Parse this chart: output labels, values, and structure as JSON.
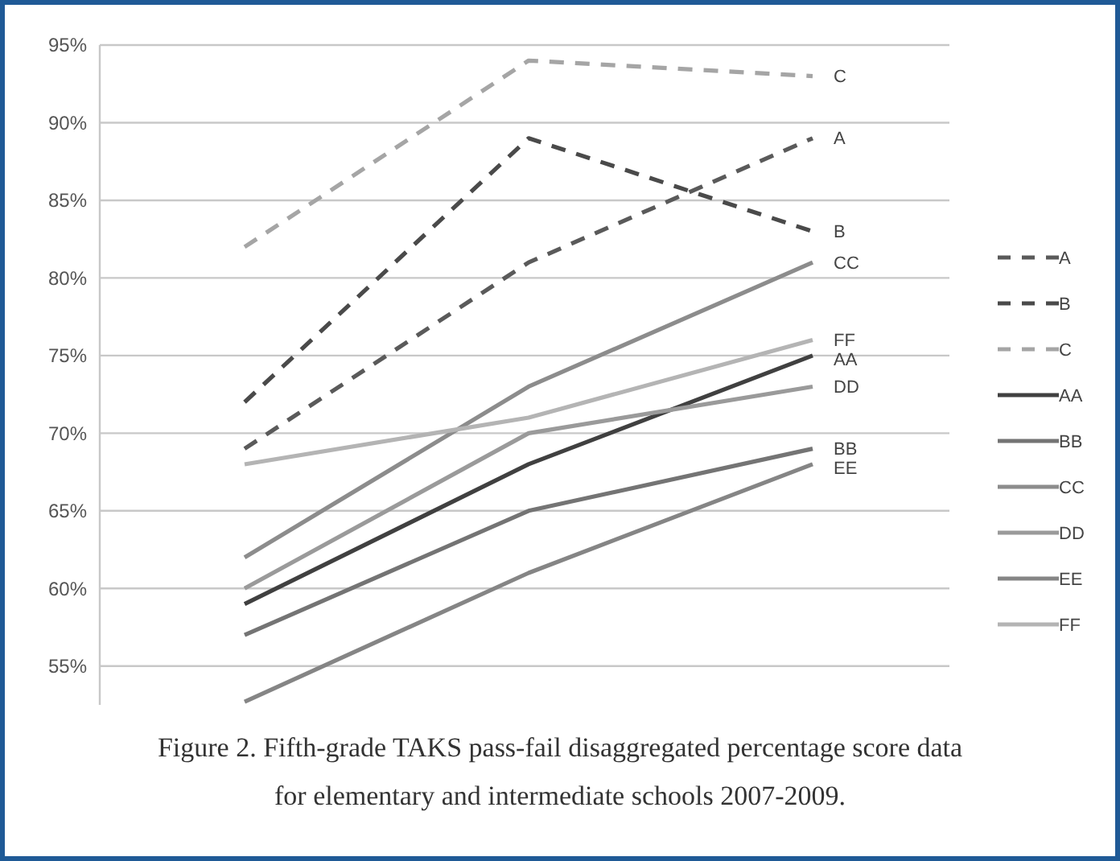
{
  "chart_data": {
    "type": "line",
    "categories": [
      null,
      null,
      null
    ],
    "ylim": [
      52.5,
      95
    ],
    "yticks": [
      {
        "value": 55,
        "label": "55%"
      },
      {
        "value": 60,
        "label": "60%"
      },
      {
        "value": 65,
        "label": "65%"
      },
      {
        "value": 70,
        "label": "70%"
      },
      {
        "value": 75,
        "label": "75%"
      },
      {
        "value": 80,
        "label": "80%"
      },
      {
        "value": 85,
        "label": "85%"
      },
      {
        "value": 90,
        "label": "90%"
      },
      {
        "value": 95,
        "label": "95%"
      }
    ],
    "grid": "y",
    "tick_labels": "y",
    "legend": "right",
    "marker": "none",
    "series": [
      {
        "name": "A",
        "color": "#5a5a5a",
        "line_style": "dashed",
        "values": [
          69,
          81,
          89
        ]
      },
      {
        "name": "B",
        "color": "#4a4a4a",
        "line_style": "dashed",
        "values": [
          72,
          89,
          83
        ]
      },
      {
        "name": "C",
        "color": "#a5a5a5",
        "line_style": "dashed",
        "values": [
          82,
          94,
          93
        ]
      },
      {
        "name": "AA",
        "color": "#404040",
        "line_style": "solid",
        "values": [
          59,
          68,
          75
        ]
      },
      {
        "name": "BB",
        "color": "#747474",
        "line_style": "solid",
        "values": [
          57,
          65,
          69
        ]
      },
      {
        "name": "CC",
        "color": "#8c8c8c",
        "line_style": "solid",
        "values": [
          62,
          73,
          81
        ]
      },
      {
        "name": "DD",
        "color": "#9a9a9a",
        "line_style": "solid",
        "values": [
          60,
          70,
          73
        ]
      },
      {
        "name": "EE",
        "color": "#858585",
        "line_style": "solid",
        "values": [
          52.7,
          61,
          68
        ]
      },
      {
        "name": "FF",
        "color": "#b4b4b4",
        "line_style": "solid",
        "values": [
          68,
          71,
          76
        ]
      }
    ],
    "annotations": [
      "Figure 2. Fifth-grade TAKS pass-fail disaggregated percentage score data for elementary and intermediate schools 2007-2009."
    ]
  }
}
